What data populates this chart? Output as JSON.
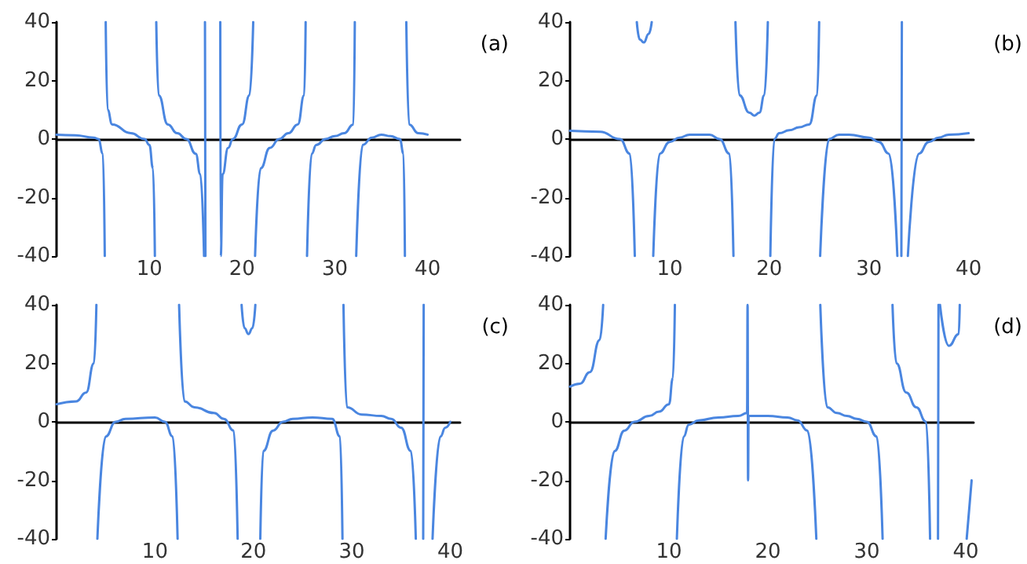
{
  "chart_data": [
    {
      "type": "line",
      "annotations": [
        "(a)"
      ],
      "xlim": [
        0,
        43.5
      ],
      "ylim": [
        -40,
        40
      ],
      "xticks": [
        10,
        20,
        30,
        40
      ],
      "yticks": [
        -40,
        -20,
        0,
        20,
        40
      ],
      "marker": "none",
      "line_style": "solid",
      "series": [
        {
          "color": "#4a86e0",
          "x": [
            0,
            2,
            4,
            4.5,
            5,
            5.2
          ],
          "values": [
            1.5,
            1.3,
            0.5,
            0,
            -5,
            -40
          ]
        },
        {
          "color": "#4a86e0",
          "x": [
            5.3,
            5.5,
            6,
            8,
            9.5,
            10,
            10.4,
            10.6
          ],
          "values": [
            40,
            10,
            5,
            2,
            0,
            -2,
            -10,
            -40
          ]
        },
        {
          "color": "#4a86e0",
          "x": [
            10.75,
            11,
            12,
            13,
            14,
            15,
            15.5,
            15.9
          ],
          "values": [
            40,
            15,
            5,
            2,
            0,
            -5,
            -12,
            -40
          ]
        },
        {
          "color": "#4a86e0",
          "x": [
            16.0,
            16.05
          ],
          "values": [
            40,
            -40
          ]
        },
        {
          "color": "#4a86e0",
          "x": [
            17.65,
            17.7,
            17.9,
            18.5,
            19,
            20,
            20.8,
            21.2
          ],
          "values": [
            40,
            -40,
            -12,
            -3,
            0,
            5,
            15,
            40
          ]
        },
        {
          "color": "#4a86e0",
          "x": [
            21.4,
            22,
            23,
            24,
            25,
            26,
            26.7,
            26.85
          ],
          "values": [
            -40,
            -10,
            -3,
            0,
            2,
            5,
            15,
            40
          ]
        },
        {
          "color": "#4a86e0",
          "x": [
            27.0,
            27.5,
            28,
            29,
            30,
            31,
            32,
            32.15
          ],
          "values": [
            -40,
            -5,
            -2,
            0,
            1,
            2,
            5,
            40
          ]
        },
        {
          "color": "#4a86e0",
          "x": [
            32.3,
            33,
            34,
            35,
            36,
            37,
            37.4,
            37.55
          ],
          "values": [
            -40,
            -2,
            0.5,
            1.5,
            1,
            0,
            -5,
            -40
          ]
        },
        {
          "color": "#4a86e0",
          "x": [
            37.7,
            38,
            39,
            40
          ],
          "values": [
            40,
            5,
            2,
            1.5
          ]
        }
      ]
    },
    {
      "type": "line",
      "annotations": [
        "(b)"
      ],
      "xlim": [
        0,
        40.5
      ],
      "ylim": [
        -40,
        40
      ],
      "xticks": [
        10,
        20,
        30,
        40
      ],
      "yticks": [
        -40,
        -20,
        0,
        20,
        40
      ],
      "marker": "none",
      "line_style": "solid",
      "series": [
        {
          "color": "#4a86e0",
          "x": [
            0,
            3,
            5,
            6,
            6.5
          ],
          "values": [
            2.8,
            2.5,
            0,
            -5,
            -40
          ]
        },
        {
          "color": "#4a86e0",
          "x": [
            6.7,
            7,
            7.4,
            7.9,
            8.2
          ],
          "values": [
            40,
            34,
            33,
            36,
            40
          ]
        },
        {
          "color": "#4a86e0",
          "x": [
            8.35,
            9,
            10,
            11,
            12,
            14,
            15,
            16,
            16.4
          ],
          "values": [
            -40,
            -5,
            -1,
            0.5,
            1.5,
            1.5,
            0,
            -5,
            -40
          ]
        },
        {
          "color": "#4a86e0",
          "x": [
            16.6,
            17,
            18,
            18.5,
            19,
            19.5,
            19.85
          ],
          "values": [
            40,
            15,
            9,
            8,
            9,
            15,
            40
          ]
        },
        {
          "color": "#4a86e0",
          "x": [
            20.1,
            20.5,
            21,
            22,
            23,
            24,
            24.8,
            25
          ],
          "values": [
            -40,
            0,
            2,
            3,
            4,
            5,
            15,
            40
          ]
        },
        {
          "color": "#4a86e0",
          "x": [
            25.1,
            26,
            27,
            28,
            30,
            31,
            32,
            32.85
          ],
          "values": [
            -40,
            0,
            1.5,
            1.5,
            0.5,
            -1,
            -5,
            -40
          ]
        },
        {
          "color": "#4a86e0",
          "x": [
            33.25,
            33.3
          ],
          "values": [
            -40,
            40
          ]
        },
        {
          "color": "#4a86e0",
          "x": [
            33.9,
            35,
            36,
            37,
            38,
            40
          ],
          "values": [
            -40,
            -5,
            -1,
            0.5,
            1.5,
            2
          ]
        }
      ]
    },
    {
      "type": "line",
      "annotations": [
        "(c)"
      ],
      "xlim": [
        0,
        41
      ],
      "ylim": [
        -40,
        40
      ],
      "xticks": [
        10,
        20,
        30,
        40
      ],
      "yticks": [
        -40,
        -20,
        0,
        20,
        40
      ],
      "marker": "none",
      "line_style": "solid",
      "series": [
        {
          "color": "#4a86e0",
          "x": [
            0,
            2,
            3,
            3.8,
            4.05
          ],
          "values": [
            6,
            7,
            10,
            20,
            40
          ]
        },
        {
          "color": "#4a86e0",
          "x": [
            4.15,
            5,
            6,
            7,
            10,
            11,
            11.8,
            12.3
          ],
          "values": [
            -40,
            -5,
            0,
            1,
            1.5,
            0,
            -5,
            -40
          ]
        },
        {
          "color": "#4a86e0",
          "x": [
            12.45,
            13,
            14,
            16,
            17,
            18,
            18.4
          ],
          "values": [
            40,
            7,
            5,
            3,
            1,
            -3,
            -40
          ]
        },
        {
          "color": "#4a86e0",
          "x": [
            18.8,
            19.1,
            19.5,
            19.9,
            20.2
          ],
          "values": [
            40,
            32,
            30,
            32,
            40
          ]
        },
        {
          "color": "#4a86e0",
          "x": [
            20.7,
            21,
            22,
            23,
            24,
            26,
            28,
            28.8,
            29.05
          ],
          "values": [
            -40,
            -10,
            -3,
            0,
            1,
            1.5,
            1,
            -5,
            -40
          ]
        },
        {
          "color": "#4a86e0",
          "x": [
            29.15,
            29.5,
            31,
            33,
            34,
            35,
            36,
            36.5
          ],
          "values": [
            40,
            5,
            2.5,
            2,
            1,
            -2,
            -10,
            -40
          ]
        },
        {
          "color": "#4a86e0",
          "x": [
            37.25,
            37.3
          ],
          "values": [
            -40,
            40
          ]
        },
        {
          "color": "#4a86e0",
          "x": [
            38.2,
            39,
            39.5,
            40
          ],
          "values": [
            -40,
            -5,
            -2,
            0
          ]
        }
      ]
    },
    {
      "type": "line",
      "annotations": [
        "(d)"
      ],
      "xlim": [
        0,
        40.8
      ],
      "ylim": [
        -40,
        40
      ],
      "xticks": [
        10,
        20,
        30,
        40
      ],
      "yticks": [
        -40,
        -20,
        0,
        20,
        40
      ],
      "marker": "none",
      "line_style": "solid",
      "series": [
        {
          "color": "#4a86e0",
          "x": [
            0,
            1,
            2,
            3,
            3.35
          ],
          "values": [
            12,
            13,
            17,
            28,
            40
          ]
        },
        {
          "color": "#4a86e0",
          "x": [
            3.6,
            4.5,
            5.5,
            6.5,
            8,
            9,
            10,
            10.4,
            10.6
          ],
          "values": [
            -40,
            -10,
            -3,
            0,
            2,
            3.5,
            6,
            15,
            40
          ]
        },
        {
          "color": "#4a86e0",
          "x": [
            10.8,
            11.5,
            12,
            13,
            15,
            17,
            17.9,
            17.95,
            18.0,
            18.05,
            19,
            20,
            22,
            23,
            24,
            24.9
          ],
          "values": [
            -40,
            -5,
            -1,
            0.5,
            1.5,
            2,
            3,
            40,
            -20,
            2,
            2,
            2,
            1.5,
            0.5,
            -3,
            -40
          ]
        },
        {
          "color": "#4a86e0",
          "x": [
            25.3,
            26,
            27,
            28,
            29,
            30,
            31,
            31.6
          ],
          "values": [
            40,
            5,
            3,
            2,
            1,
            0,
            -5,
            -40
          ]
        },
        {
          "color": "#4a86e0",
          "x": [
            32.6,
            33,
            34,
            35,
            36,
            36.4
          ],
          "values": [
            40,
            20,
            10,
            5,
            0,
            -40
          ]
        },
        {
          "color": "#4a86e0",
          "x": [
            37.2,
            37.25
          ],
          "values": [
            -40,
            40
          ]
        },
        {
          "color": "#4a86e0",
          "x": [
            37.4,
            38.3,
            39.3,
            39.4
          ],
          "values": [
            40,
            26,
            30,
            40
          ]
        },
        {
          "color": "#4a86e0",
          "x": [
            40.1,
            40.6
          ],
          "values": [
            -40,
            -20
          ]
        }
      ]
    }
  ]
}
